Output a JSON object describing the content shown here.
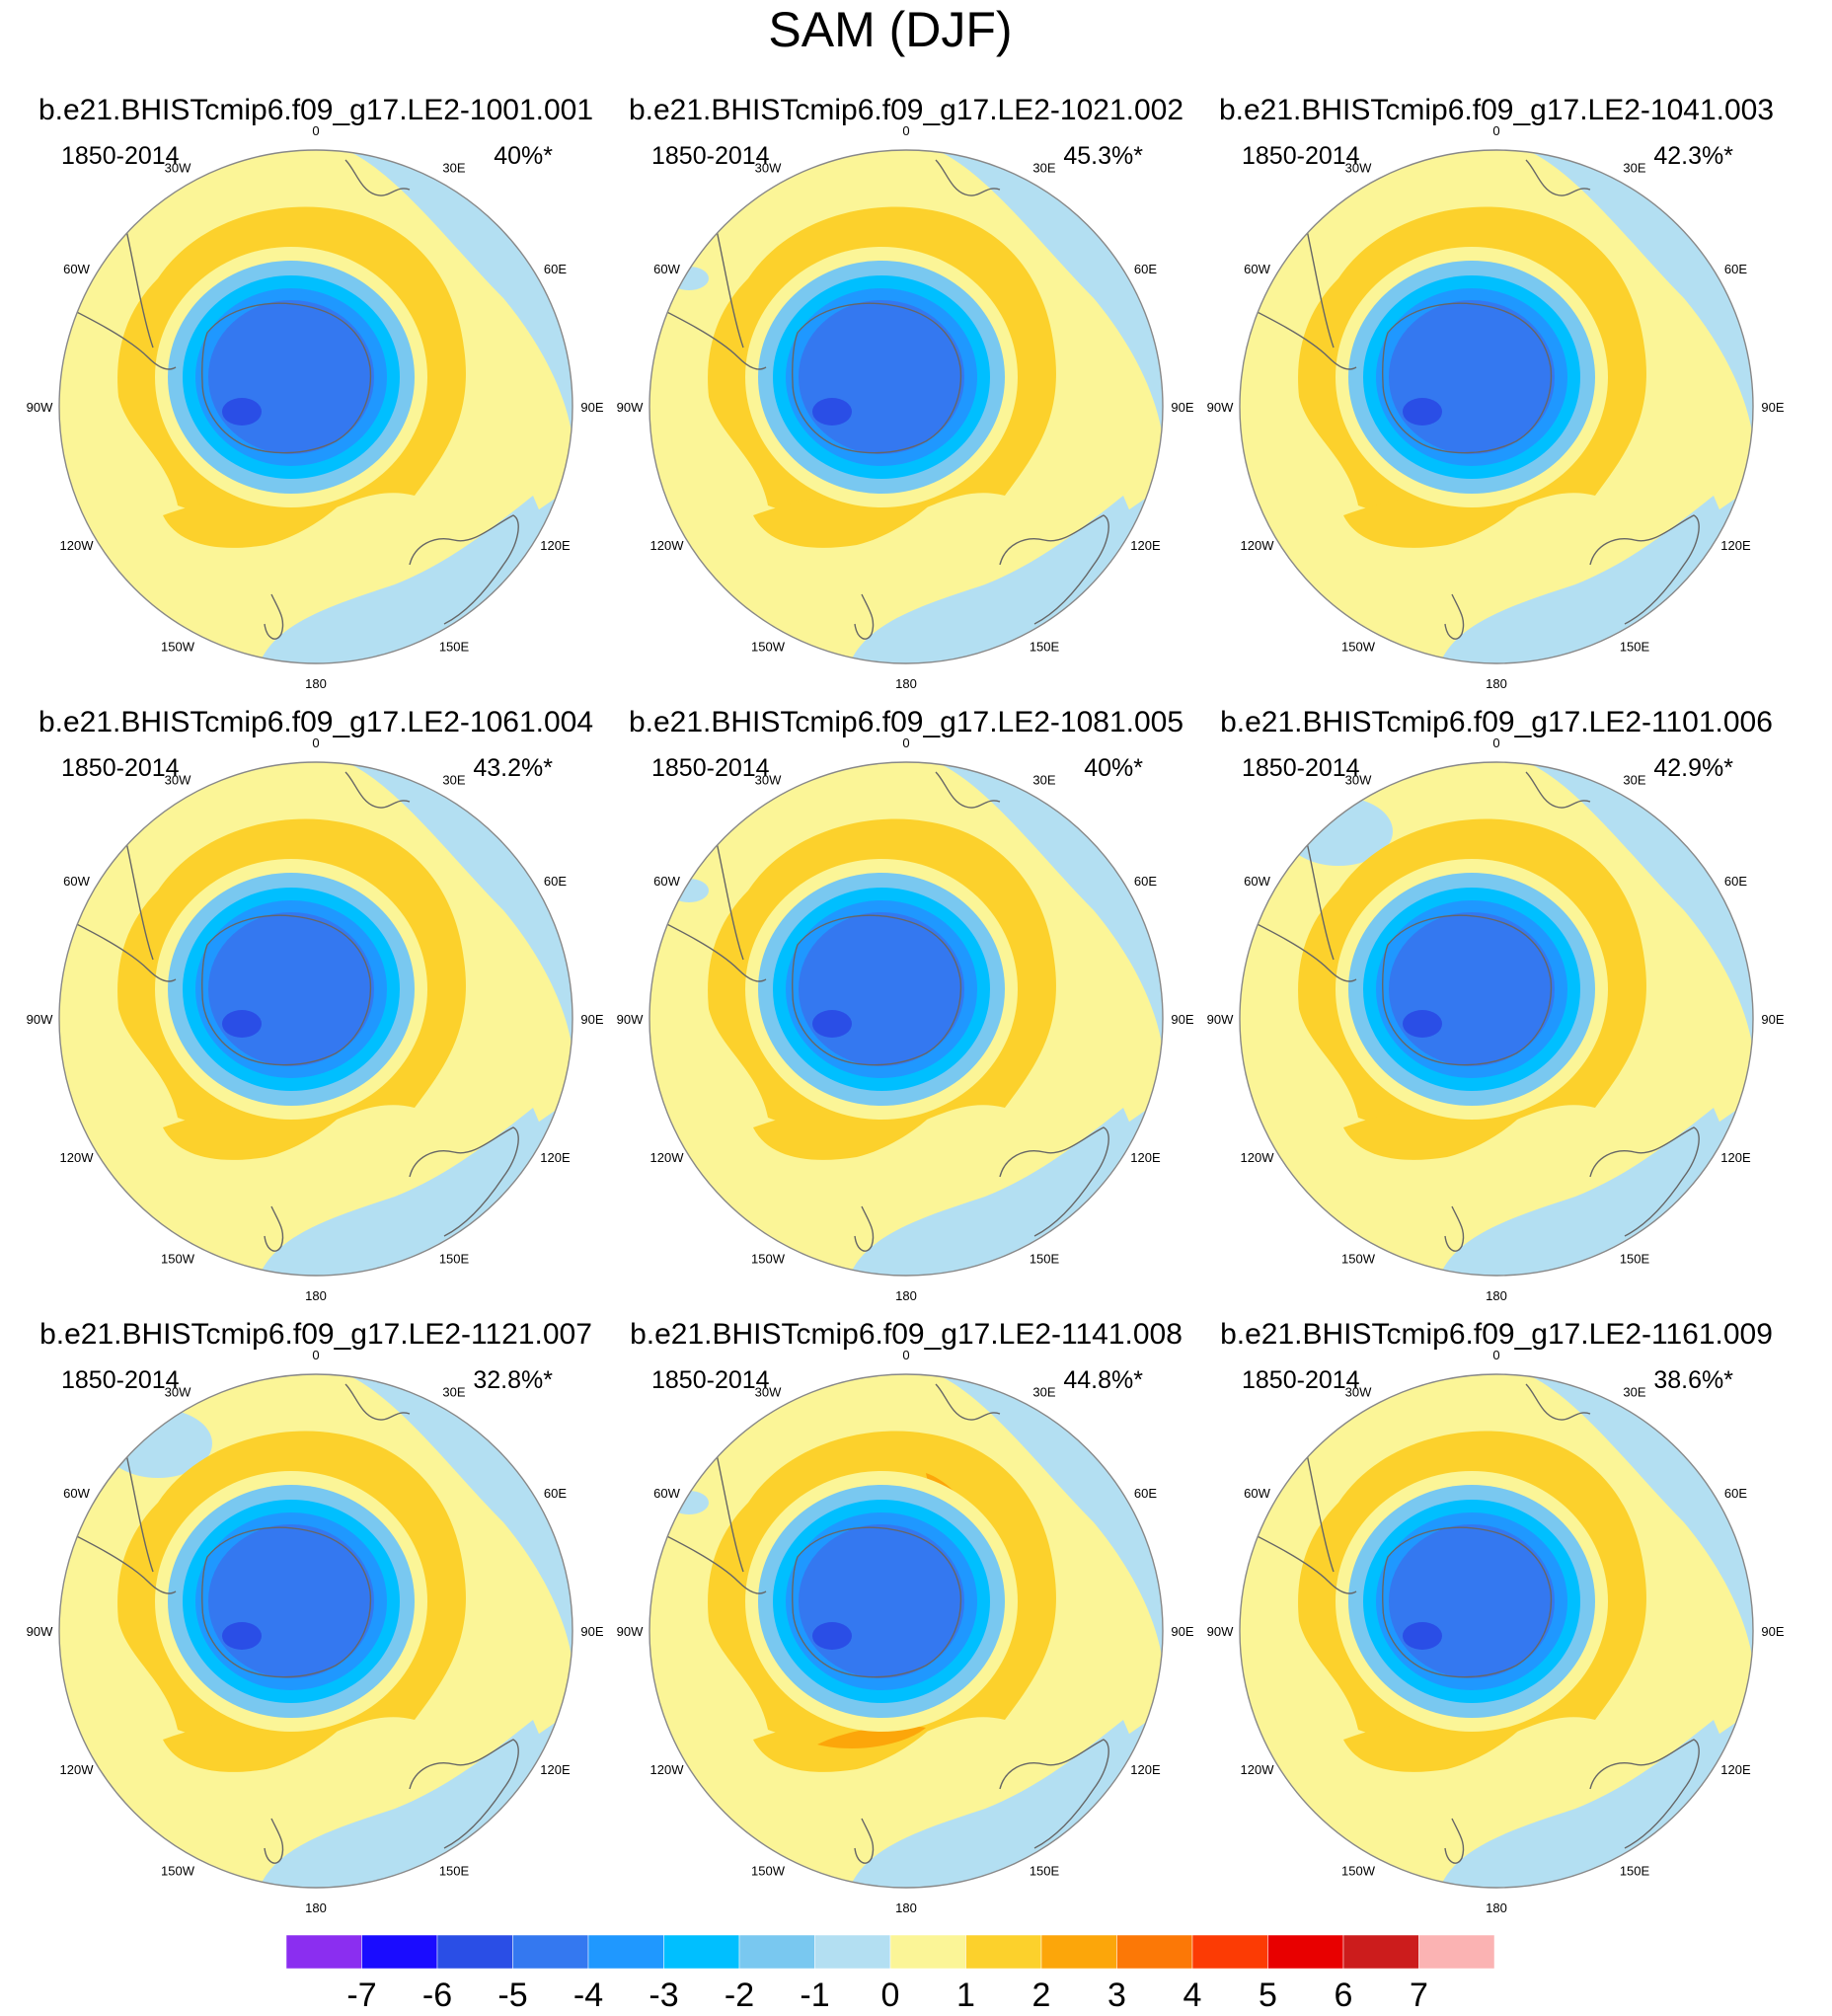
{
  "title": "SAM (DJF)",
  "period": "1850-2014",
  "lon_labels": [
    "0",
    "30E",
    "60E",
    "90E",
    "120E",
    "150E",
    "180",
    "150W",
    "120W",
    "90W",
    "60W",
    "30W"
  ],
  "panels": [
    {
      "name": "b.e21.BHISTcmip6.f09_g17.LE2-1001.001",
      "pct": "40%*"
    },
    {
      "name": "b.e21.BHISTcmip6.f09_g17.LE2-1021.002",
      "pct": "45.3%*"
    },
    {
      "name": "b.e21.BHISTcmip6.f09_g17.LE2-1041.003",
      "pct": "42.3%*"
    },
    {
      "name": "b.e21.BHISTcmip6.f09_g17.LE2-1061.004",
      "pct": "43.2%*"
    },
    {
      "name": "b.e21.BHISTcmip6.f09_g17.LE2-1081.005",
      "pct": "40%*"
    },
    {
      "name": "b.e21.BHISTcmip6.f09_g17.LE2-1101.006",
      "pct": "42.9%*"
    },
    {
      "name": "b.e21.BHISTcmip6.f09_g17.LE2-1121.007",
      "pct": "32.8%*"
    },
    {
      "name": "b.e21.BHISTcmip6.f09_g17.LE2-1141.008",
      "pct": "44.8%*"
    },
    {
      "name": "b.e21.BHISTcmip6.f09_g17.LE2-1161.009",
      "pct": "38.6%*"
    }
  ],
  "colorbar": {
    "labels": [
      "-7",
      "-6",
      "-5",
      "-4",
      "-3",
      "-2",
      "-1",
      "0",
      "1",
      "2",
      "3",
      "4",
      "5",
      "6",
      "7"
    ],
    "colors": [
      "#8b2ef0",
      "#1a0cff",
      "#2a4ee6",
      "#3478f0",
      "#1f98ff",
      "#00bfff",
      "#79c8f0",
      "#b3dff2",
      "#fbf597",
      "#fcd12c",
      "#fca60a",
      "#fc7806",
      "#fc3b04",
      "#e80000",
      "#cc1c1c",
      "#fbb3b3"
    ]
  }
}
